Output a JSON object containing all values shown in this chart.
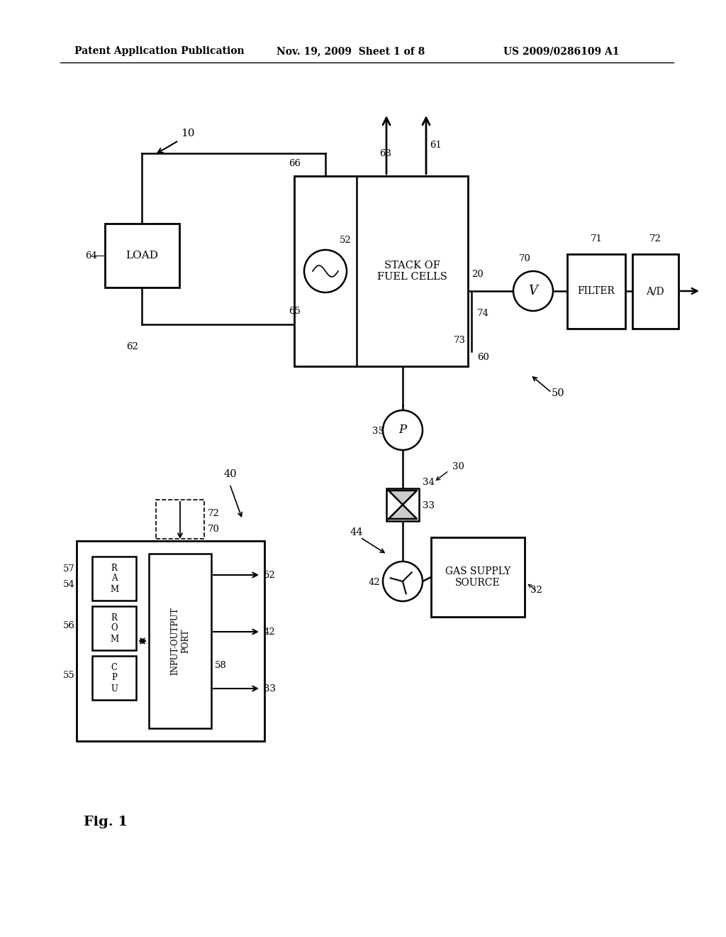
{
  "bg_color": "#ffffff",
  "header_left": "Patent Application Publication",
  "header_mid": "Nov. 19, 2009  Sheet 1 of 8",
  "header_right": "US 2009/0286109 A1",
  "fig_label": "Fig. 1"
}
